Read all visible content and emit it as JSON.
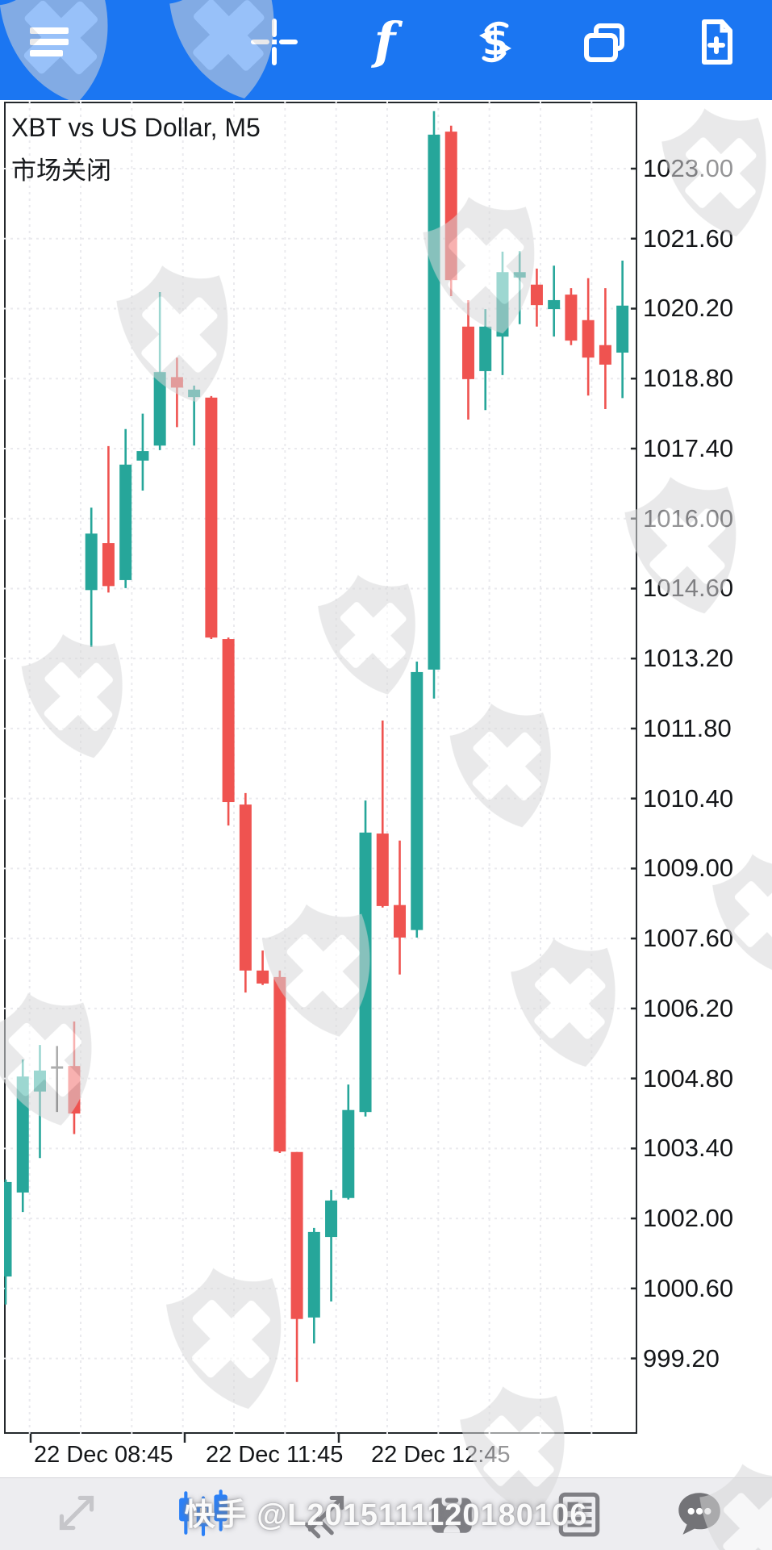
{
  "app": {
    "toolbar_top": {
      "bg_color": "#1b76f2",
      "icon_color": "#ffffff",
      "icons": [
        "menu-icon",
        "crosshair-icon",
        "indicators-icon",
        "trade-icon",
        "chart-windows-icon",
        "new-chart-icon"
      ]
    },
    "toolbar_bottom": {
      "bg_color": "#ededf0",
      "icons": [
        "trend-arrows-icon",
        "chart-type-candles-icon",
        "trendline-tool-icon",
        "objects-archive-icon",
        "news-icon",
        "chat-icon"
      ],
      "active_icon": "chart-type-candles-icon",
      "active_color": "#2b80f7",
      "inactive_color": "#7f7f84",
      "disabled_color": "#c6c6ca"
    }
  },
  "chart": {
    "title": "XBT vs US Dollar, M5",
    "subtitle": "市场关闭",
    "colors": {
      "bull": "#26a69a",
      "bear": "#ef5350",
      "doji": "#4a4a4a",
      "grid": "#eaeaee",
      "border": "#24282c"
    },
    "price_axis": {
      "labels": [
        "1023.00",
        "1021.60",
        "1020.20",
        "1018.80",
        "1017.40",
        "1016.00",
        "1014.60",
        "1013.20",
        "1011.80",
        "1010.40",
        "1009.00",
        "1007.60",
        "1006.20",
        "1004.80",
        "1003.40",
        "1002.00",
        "1000.60",
        "999.20"
      ]
    },
    "time_axis": {
      "labels": [
        "22 Dec 08:45",
        "22 Dec 11:45",
        "22 Dec 12:45"
      ]
    }
  },
  "chart_data": {
    "type": "candlestick",
    "symbol": "XBT vs US Dollar",
    "timeframe": "M5",
    "status": "市场关闭",
    "title": "XBT vs US Dollar, M5",
    "y_axis": {
      "top_label": 1023.0,
      "bottom_label": 999.2,
      "step": 1.4,
      "visible_range": [
        997.7,
        1024.3
      ]
    },
    "x_labels": [
      "22 Dec 08:45",
      "22 Dec 11:45",
      "22 Dec 12:45"
    ],
    "legend_position": "none",
    "grid": true,
    "candles": [
      {
        "o": 1000.84,
        "h": 1002.78,
        "l": 1000.28,
        "c": 1002.73,
        "dir": "up"
      },
      {
        "o": 1002.52,
        "h": 1005.18,
        "l": 1002.13,
        "c": 1004.84,
        "dir": "up"
      },
      {
        "o": 1004.54,
        "h": 1005.47,
        "l": 1003.21,
        "c": 1004.96,
        "dir": "up"
      },
      {
        "o": 1005.02,
        "h": 1005.45,
        "l": 1004.13,
        "c": 1005.02,
        "dir": "doji"
      },
      {
        "o": 1005.05,
        "h": 1005.94,
        "l": 1003.69,
        "c": 1004.1,
        "dir": "down"
      },
      {
        "o": 1014.57,
        "h": 1016.22,
        "l": 1013.43,
        "c": 1015.7,
        "dir": "up"
      },
      {
        "o": 1015.51,
        "h": 1017.45,
        "l": 1014.52,
        "c": 1014.65,
        "dir": "down"
      },
      {
        "o": 1014.77,
        "h": 1017.79,
        "l": 1014.61,
        "c": 1017.08,
        "dir": "up"
      },
      {
        "o": 1017.16,
        "h": 1018.1,
        "l": 1016.56,
        "c": 1017.35,
        "dir": "up"
      },
      {
        "o": 1017.46,
        "h": 1020.53,
        "l": 1017.37,
        "c": 1018.93,
        "dir": "up"
      },
      {
        "o": 1018.83,
        "h": 1019.22,
        "l": 1017.83,
        "c": 1018.62,
        "dir": "down"
      },
      {
        "o": 1018.43,
        "h": 1018.66,
        "l": 1017.46,
        "c": 1018.58,
        "dir": "up"
      },
      {
        "o": 1018.42,
        "h": 1018.45,
        "l": 1013.59,
        "c": 1013.62,
        "dir": "down"
      },
      {
        "o": 1013.59,
        "h": 1013.62,
        "l": 1009.86,
        "c": 1010.33,
        "dir": "down"
      },
      {
        "o": 1010.28,
        "h": 1010.51,
        "l": 1006.52,
        "c": 1006.96,
        "dir": "down"
      },
      {
        "o": 1006.96,
        "h": 1007.36,
        "l": 1006.67,
        "c": 1006.7,
        "dir": "down"
      },
      {
        "o": 1006.83,
        "h": 1006.96,
        "l": 1003.31,
        "c": 1003.34,
        "dir": "down"
      },
      {
        "o": 1003.33,
        "h": 1003.33,
        "l": 998.73,
        "c": 999.99,
        "dir": "down"
      },
      {
        "o": 1000.02,
        "h": 1001.81,
        "l": 999.5,
        "c": 1001.73,
        "dir": "up"
      },
      {
        "o": 1001.63,
        "h": 1002.57,
        "l": 1000.34,
        "c": 1002.36,
        "dir": "up"
      },
      {
        "o": 1002.41,
        "h": 1004.68,
        "l": 1002.38,
        "c": 1004.17,
        "dir": "up"
      },
      {
        "o": 1004.13,
        "h": 1010.36,
        "l": 1004.04,
        "c": 1009.72,
        "dir": "up"
      },
      {
        "o": 1009.7,
        "h": 1011.96,
        "l": 1008.22,
        "c": 1008.25,
        "dir": "down"
      },
      {
        "o": 1008.27,
        "h": 1009.56,
        "l": 1006.88,
        "c": 1007.62,
        "dir": "down"
      },
      {
        "o": 1007.77,
        "h": 1013.14,
        "l": 1007.62,
        "c": 1012.93,
        "dir": "up"
      },
      {
        "o": 1012.98,
        "h": 1024.15,
        "l": 1012.4,
        "c": 1023.68,
        "dir": "up"
      },
      {
        "o": 1023.74,
        "h": 1023.86,
        "l": 1020.45,
        "c": 1020.77,
        "dir": "down"
      },
      {
        "o": 1019.84,
        "h": 1020.37,
        "l": 1017.98,
        "c": 1018.79,
        "dir": "down"
      },
      {
        "o": 1018.95,
        "h": 1020.19,
        "l": 1018.17,
        "c": 1019.84,
        "dir": "up"
      },
      {
        "o": 1019.64,
        "h": 1021.34,
        "l": 1018.87,
        "c": 1020.93,
        "dir": "up"
      },
      {
        "o": 1020.82,
        "h": 1021.35,
        "l": 1019.89,
        "c": 1020.93,
        "dir": "up"
      },
      {
        "o": 1020.68,
        "h": 1021.0,
        "l": 1019.84,
        "c": 1020.27,
        "dir": "down"
      },
      {
        "o": 1020.19,
        "h": 1021.06,
        "l": 1019.64,
        "c": 1020.37,
        "dir": "up"
      },
      {
        "o": 1020.48,
        "h": 1020.61,
        "l": 1019.47,
        "c": 1019.56,
        "dir": "down"
      },
      {
        "o": 1019.97,
        "h": 1020.81,
        "l": 1018.46,
        "c": 1019.22,
        "dir": "down"
      },
      {
        "o": 1019.47,
        "h": 1020.61,
        "l": 1018.19,
        "c": 1019.08,
        "dir": "down"
      },
      {
        "o": 1019.32,
        "h": 1021.16,
        "l": 1018.41,
        "c": 1020.26,
        "dir": "up"
      }
    ]
  },
  "watermark": {
    "text": "快手 @L2015111120180106",
    "shield_color": "#d7d8d9",
    "shield_count": 16
  }
}
